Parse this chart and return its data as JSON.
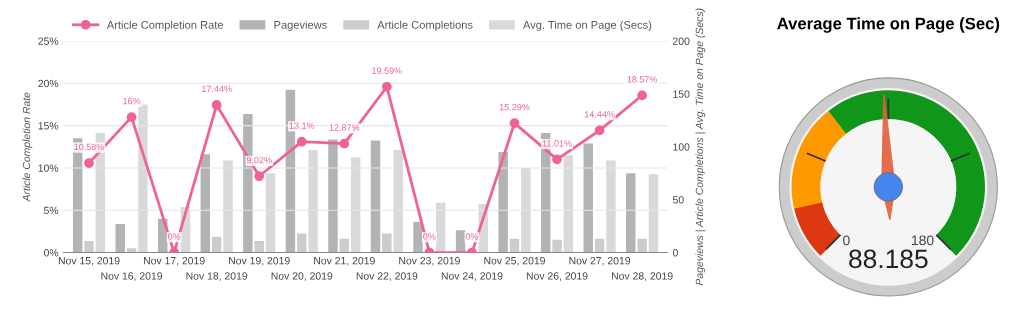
{
  "chart_data": [
    {
      "type": "bar",
      "categories": [
        "Nov 15, 2019",
        "Nov 16, 2019",
        "Nov 17, 2019",
        "Nov 18, 2019",
        "Nov 19, 2019",
        "Nov 20, 2019",
        "Nov 21, 2019",
        "Nov 22, 2019",
        "Nov 23, 2019",
        "Nov 24, 2019",
        "Nov 25, 2019",
        "Nov 26, 2019",
        "Nov 27, 2019",
        "Nov 28, 2019"
      ],
      "series": [
        {
          "name": "Article Completion Rate",
          "type": "line",
          "color": "#f06292",
          "marker": "circle",
          "values": [
            10.58,
            16,
            0,
            17.44,
            9.02,
            13.1,
            12.87,
            19.59,
            0,
            0,
            15.29,
            11.01,
            14.44,
            18.57
          ],
          "value_labels": [
            "10.58%",
            "16%",
            "0%",
            "17.44%",
            "9.02%",
            "13.1%",
            "12.87%",
            "19.59%",
            "0%",
            "0%",
            "15.29%",
            "11.01%",
            "14.44%",
            "18.57%"
          ]
        },
        {
          "name": "Pageviews",
          "type": "bar",
          "axis": "y2",
          "color": "#b3b3b3",
          "values": [
            108,
            27,
            32,
            93,
            131,
            154,
            107,
            106,
            29,
            21,
            95,
            113,
            103,
            75
          ]
        },
        {
          "name": "Article Completions",
          "type": "bar",
          "axis": "y2",
          "color": "#cccccc",
          "values": [
            11,
            4,
            0,
            15,
            11,
            18,
            13,
            18,
            0,
            0,
            13,
            12,
            13,
            13
          ]
        },
        {
          "name": "Avg. Time on Page (Secs)",
          "type": "bar",
          "axis": "y2",
          "color": "#d9d9d9",
          "values": [
            113,
            140,
            43,
            87,
            75,
            97,
            90,
            97,
            47,
            46,
            80,
            92,
            87,
            74
          ]
        }
      ],
      "ylabel": "Article Completion Rate",
      "y2label": "Pageviews | Article Completions | Avg. Time on Page (Secs)",
      "ylim": [
        0,
        25
      ],
      "yticks": [
        {
          "value": 0,
          "label": "0%"
        },
        {
          "value": 5,
          "label": "5%"
        },
        {
          "value": 10,
          "label": "10%"
        },
        {
          "value": 15,
          "label": "15%"
        },
        {
          "value": 20,
          "label": "20%"
        },
        {
          "value": 25,
          "label": "25%"
        }
      ],
      "y2lim": [
        0,
        200
      ],
      "y2ticks": [
        0,
        50,
        100,
        150,
        200
      ],
      "grid": "y",
      "legend": "top"
    },
    {
      "type": "other",
      "title": "Average Time on Page (Sec)",
      "annotations": [
        "0",
        "180",
        "88.185"
      ]
    }
  ]
}
